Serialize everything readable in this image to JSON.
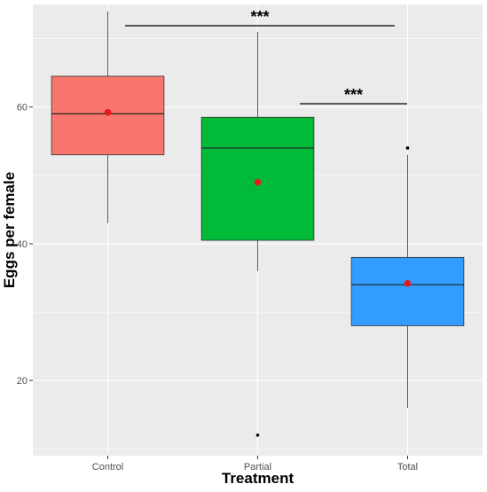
{
  "chart_data": {
    "type": "box",
    "xlabel": "Treatment",
    "ylabel": "Eggs per female",
    "ylim": [
      9,
      75
    ],
    "yticks": [
      20,
      40,
      60
    ],
    "grid": true,
    "categories": [
      "Control",
      "Partial",
      "Total"
    ],
    "boxes": [
      {
        "category": "Control",
        "whisker_low": 43,
        "q1": 53,
        "median": 59,
        "q3": 64.5,
        "whisker_high": 74,
        "mean": 59.2,
        "outliers": [],
        "color": "#F8766D"
      },
      {
        "category": "Partial",
        "whisker_low": 36,
        "q1": 40.5,
        "median": 54,
        "q3": 58.5,
        "whisker_high": 71,
        "mean": 49,
        "outliers": [
          12
        ],
        "color": "#00BA38"
      },
      {
        "category": "Total",
        "whisker_low": 16,
        "q1": 28,
        "median": 34,
        "q3": 38,
        "whisker_high": 53,
        "mean": 34.2,
        "outliers": [
          54
        ],
        "color": "#339CFF"
      }
    ],
    "mean_marker_color": "#E41A1C",
    "significance": [
      {
        "from": "Control",
        "to": "Total",
        "label": "***"
      },
      {
        "from": "Partial",
        "to": "Total",
        "label": "***"
      }
    ],
    "panel_background": "#EBEBEB",
    "grid_color": "#FFFFFF"
  }
}
